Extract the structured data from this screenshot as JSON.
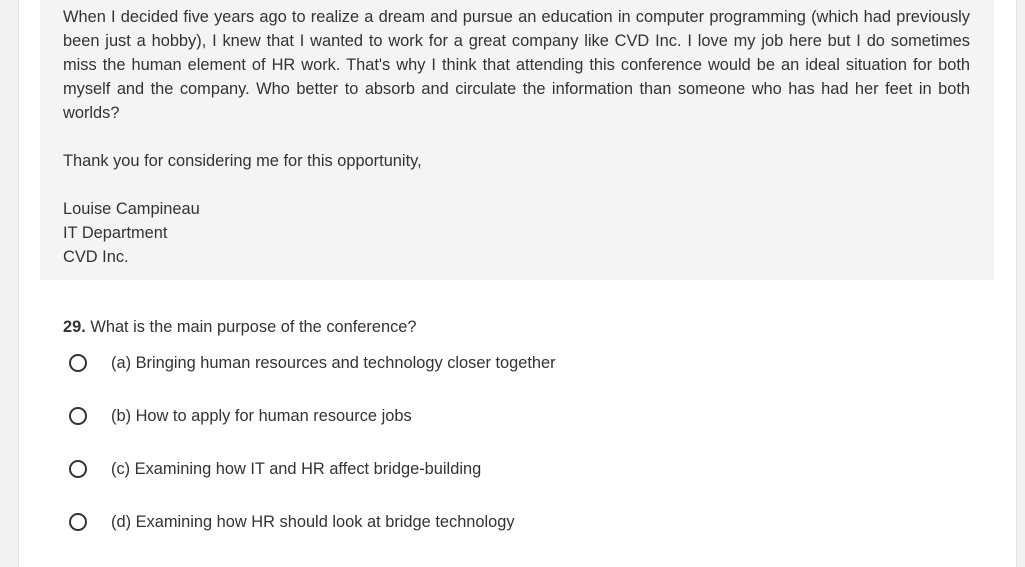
{
  "passage": {
    "body": "When I decided five years ago to realize a dream and pursue an education in computer programming (which had previously been just a hobby), I knew that I wanted to work for a great company like CVD Inc. I love my job here but I do sometimes miss the human element of HR work. That's why I think that attending this conference would be an ideal situation for both myself and the company. Who better to absorb and circulate the information than someone who has had her feet in both worlds?",
    "closing": "Thank you for considering me for this opportunity,",
    "signature": {
      "name": "Louise Campineau",
      "department": "IT Department",
      "company": "CVD Inc."
    }
  },
  "question": {
    "number": "29.",
    "text": "What is the main purpose of the conference?",
    "options": [
      {
        "label": "(a) Bringing human resources and technology closer together"
      },
      {
        "label": "(b) How to apply for human resource jobs"
      },
      {
        "label": "(c) Examining how IT and HR affect bridge-building"
      },
      {
        "label": "(d) Examining how HR should look at bridge technology"
      }
    ]
  }
}
